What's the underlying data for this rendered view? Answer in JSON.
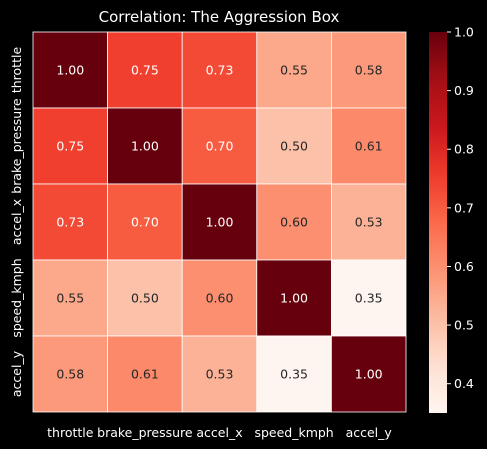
{
  "chart_data": {
    "type": "heatmap",
    "title": "Correlation: The Aggression Box",
    "xlabel": "",
    "ylabel": "",
    "labels": [
      "throttle",
      "brake_pressure",
      "accel_x",
      "speed_kmph",
      "accel_y"
    ],
    "matrix": [
      [
        1.0,
        0.75,
        0.73,
        0.55,
        0.58
      ],
      [
        0.75,
        1.0,
        0.7,
        0.5,
        0.61
      ],
      [
        0.73,
        0.7,
        1.0,
        0.6,
        0.53
      ],
      [
        0.55,
        0.5,
        0.6,
        1.0,
        0.35
      ],
      [
        0.58,
        0.61,
        0.53,
        0.35,
        1.0
      ]
    ],
    "value_format": "2 decimals",
    "colormap": "Reds",
    "colorbar": {
      "range": [
        0.35,
        1.0
      ],
      "ticks": [
        "0.4",
        "0.5",
        "0.6",
        "0.7",
        "0.8",
        "0.9",
        "1.0"
      ]
    },
    "colors": {
      "background": "#000000",
      "text": "#ffffff",
      "grid_lines": "#ffffff",
      "dark_label": "#262626",
      "light_label": "#ffffff"
    },
    "legend": "colorbar-right",
    "grid": true
  }
}
